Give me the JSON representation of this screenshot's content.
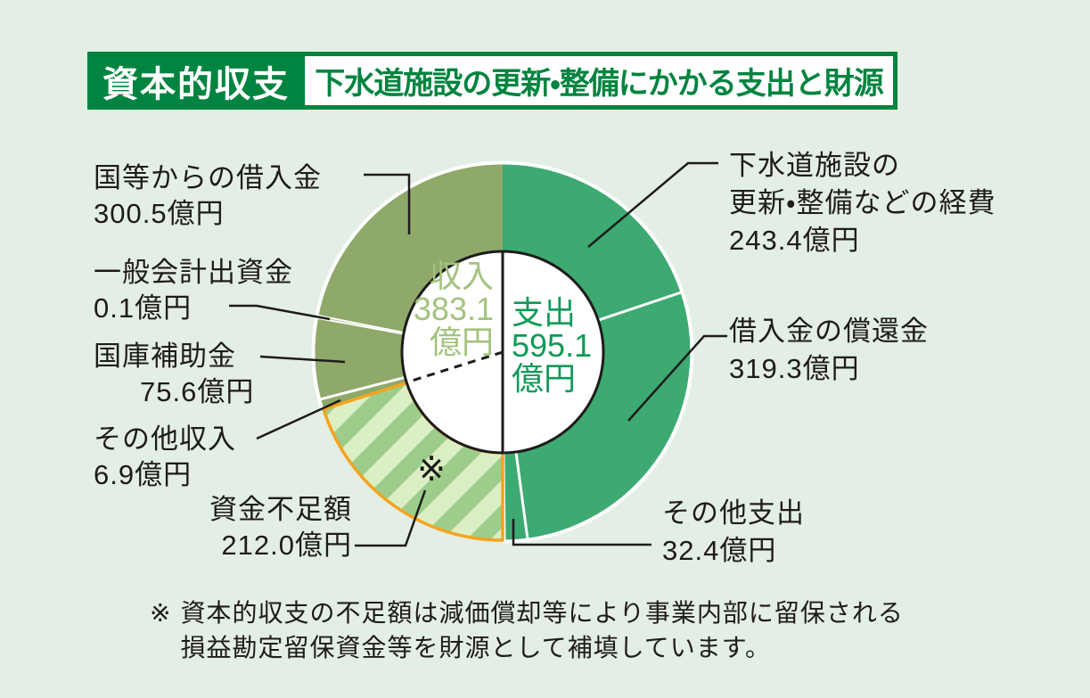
{
  "header": {
    "badge": "資本的収支",
    "subtitle": "下水道施設の更新・整備にかかる支出と財源",
    "badge_bg": "#00843f",
    "badge_text_color": "#ffffff"
  },
  "chart_data": {
    "type": "pie",
    "variant": "donut-half-split",
    "unit": "億円",
    "total_expenditure": 595.1,
    "total_income": 383.1,
    "deficit": 212.0,
    "center": {
      "income_label": "収入",
      "income_value": "383.1",
      "income_unit": "億円",
      "income_text_color": "#a3c37e",
      "expense_label": "支出",
      "expense_value": "595.1",
      "expense_unit": "億円",
      "expense_text_color": "#0f9a57"
    },
    "segments": [
      {
        "id": "keihi",
        "label": "下水道施設の更新・整備などの経費",
        "label_lines": [
          "下水道施設の",
          "更新・整備などの経費"
        ],
        "value": 243.4,
        "value_text": "243.4億円",
        "side": "支出",
        "color": "#3caa71",
        "start_deg": 0,
        "end_deg": 71.5
      },
      {
        "id": "shokan",
        "label": "借入金の償還金",
        "value": 319.3,
        "value_text": "319.3億円",
        "side": "支出",
        "color": "#3caa71",
        "start_deg": 71.5,
        "end_deg": 172.4
      },
      {
        "id": "sonota_shishutsu",
        "label": "その他支出",
        "value": 32.4,
        "value_text": "32.4億円",
        "side": "支出",
        "color": "#3caa71",
        "start_deg": 172.4,
        "end_deg": 180
      },
      {
        "id": "fusoku",
        "label": "資金不足額",
        "value": 212.0,
        "value_text": "212.0億円",
        "side": "収入",
        "pattern": "diagonal-stripes",
        "stripe_light": "#dcefc4",
        "stripe_dark": "#9ccd8b",
        "border": "#f5a31e",
        "note_marker": "※",
        "start_deg": 180,
        "end_deg": 252.3
      },
      {
        "id": "sonota_shunyu",
        "label": "その他収入",
        "value": 6.9,
        "value_text": "6.9億円",
        "side": "収入",
        "color": "#8ea969",
        "start_deg": 252.3,
        "end_deg": 255.5
      },
      {
        "id": "kokko",
        "label": "国庫補助金",
        "value": 75.6,
        "value_text": "75.6億円",
        "side": "収入",
        "color": "#8ea969",
        "start_deg": 255.5,
        "end_deg": 280.4
      },
      {
        "id": "ippan",
        "label": "一般会計出資金",
        "value": 0.1,
        "value_text": "0.1億円",
        "side": "収入",
        "color": "#8ea969",
        "start_deg": 280.4,
        "end_deg": 281.2
      },
      {
        "id": "kokutou",
        "label": "国等からの借入金",
        "value": 300.5,
        "value_text": "300.5億円",
        "side": "収入",
        "color": "#8ea969",
        "start_deg": 281.2,
        "end_deg": 360
      }
    ]
  },
  "note": {
    "marker": "※",
    "line1": "資本的収支の不足額は減価償却等により事業内部に留保される",
    "line2": "損益勘定留保資金等を財源として補填しています。"
  }
}
